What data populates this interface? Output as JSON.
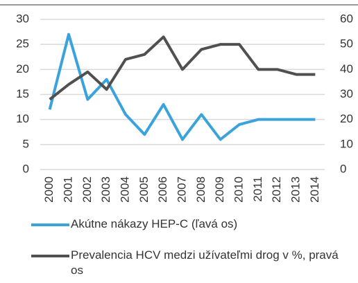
{
  "chart_data": {
    "type": "line",
    "categories": [
      "2000",
      "2001",
      "2002",
      "2003",
      "2004",
      "2005",
      "2006",
      "2007",
      "2008",
      "2009",
      "2010",
      "2011",
      "2012",
      "2013",
      "2014"
    ],
    "series": [
      {
        "name": "Akútne nákazy HEP-C (ľavá os)",
        "color": "#3ba3dc",
        "values": [
          12,
          27,
          14,
          18,
          11,
          7,
          13,
          6,
          11,
          6,
          9,
          10,
          10,
          10,
          10
        ]
      },
      {
        "name": "Prevalencia HCV medzi užívateľmi drog v %, pravá os",
        "color": "#505050",
        "axis": "y2",
        "values": [
          28,
          34,
          39,
          32,
          44,
          46,
          53,
          40,
          48,
          50,
          50,
          40,
          40,
          38,
          38
        ]
      }
    ],
    "ylim": [
      0,
      30
    ],
    "yticks": [
      0,
      5,
      10,
      15,
      20,
      25,
      30
    ],
    "y2lim": [
      0,
      60
    ],
    "y2ticks": [
      0,
      10,
      20,
      30,
      40,
      50,
      60
    ],
    "grid": true
  }
}
